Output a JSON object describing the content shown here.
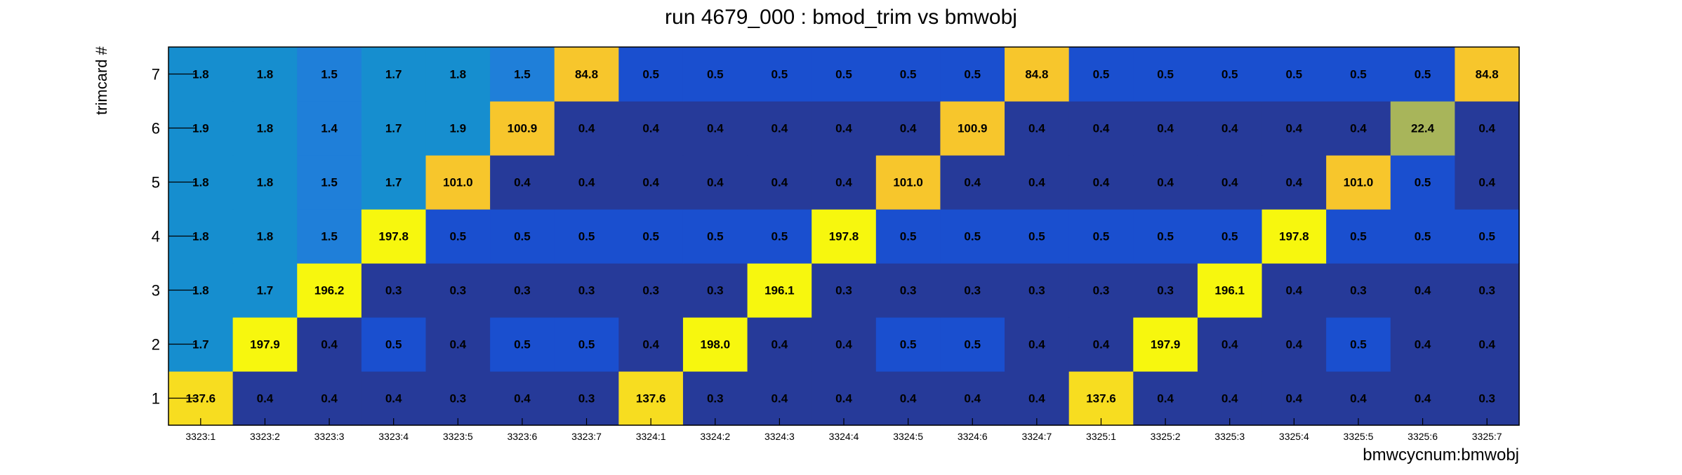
{
  "chart_data": {
    "type": "heatmap",
    "title": "run 4679_000 : bmod_trim vs bmwobj",
    "xlabel": "bmwcycnum:bmwobj",
    "ylabel": "trimcard #",
    "x_categories": [
      "3323:1",
      "3323:2",
      "3323:3",
      "3323:4",
      "3323:5",
      "3323:6",
      "3323:7",
      "3324:1",
      "3324:2",
      "3324:3",
      "3324:4",
      "3324:5",
      "3324:6",
      "3324:7",
      "3325:1",
      "3325:2",
      "3325:3",
      "3325:4",
      "3325:5",
      "3325:6",
      "3325:7"
    ],
    "y_categories": [
      "1",
      "2",
      "3",
      "4",
      "5",
      "6",
      "7"
    ],
    "values": [
      [
        "137.6",
        "0.4",
        "0.4",
        "0.4",
        "0.3",
        "0.4",
        "0.3",
        "137.6",
        "0.3",
        "0.4",
        "0.4",
        "0.4",
        "0.4",
        "0.4",
        "137.6",
        "0.4",
        "0.4",
        "0.4",
        "0.4",
        "0.4",
        "0.3"
      ],
      [
        "1.7",
        "197.9",
        "0.4",
        "0.5",
        "0.4",
        "0.5",
        "0.5",
        "0.4",
        "198.0",
        "0.4",
        "0.4",
        "0.5",
        "0.5",
        "0.4",
        "0.4",
        "197.9",
        "0.4",
        "0.4",
        "0.5",
        "0.4",
        "0.4"
      ],
      [
        "1.8",
        "1.7",
        "196.2",
        "0.3",
        "0.3",
        "0.3",
        "0.3",
        "0.3",
        "0.3",
        "196.1",
        "0.3",
        "0.3",
        "0.3",
        "0.3",
        "0.3",
        "0.3",
        "196.1",
        "0.4",
        "0.3",
        "0.4",
        "0.3"
      ],
      [
        "1.8",
        "1.8",
        "1.5",
        "197.8",
        "0.5",
        "0.5",
        "0.5",
        "0.5",
        "0.5",
        "0.5",
        "197.8",
        "0.5",
        "0.5",
        "0.5",
        "0.5",
        "0.5",
        "0.5",
        "197.8",
        "0.5",
        "0.5",
        "0.5"
      ],
      [
        "1.8",
        "1.8",
        "1.5",
        "1.7",
        "101.0",
        "0.4",
        "0.4",
        "0.4",
        "0.4",
        "0.4",
        "0.4",
        "101.0",
        "0.4",
        "0.4",
        "0.4",
        "0.4",
        "0.4",
        "0.4",
        "101.0",
        "0.5",
        "0.4"
      ],
      [
        "1.9",
        "1.8",
        "1.4",
        "1.7",
        "1.9",
        "100.9",
        "0.4",
        "0.4",
        "0.4",
        "0.4",
        "0.4",
        "0.4",
        "100.9",
        "0.4",
        "0.4",
        "0.4",
        "0.4",
        "0.4",
        "0.4",
        "22.4",
        "0.4"
      ],
      [
        "1.8",
        "1.8",
        "1.5",
        "1.7",
        "1.8",
        "1.5",
        "84.8",
        "0.5",
        "0.5",
        "0.5",
        "0.5",
        "0.5",
        "0.5",
        "84.8",
        "0.5",
        "0.5",
        "0.5",
        "0.5",
        "0.5",
        "0.5",
        "84.8"
      ]
    ],
    "colormap": {
      "0.3": "#263a99",
      "0.4": "#263a99",
      "0.5": "#1a4fcf",
      "1.4": "#1f7fd9",
      "1.5": "#1f7fd9",
      "1.7": "#168ecf",
      "1.8": "#168ecf",
      "1.9": "#168ecf",
      "22.4": "#a8b55a",
      "84.8": "#f7c62c",
      "100.9": "#f7c62c",
      "101.0": "#f7c62c",
      "137.6": "#f7dd20",
      "196.1": "#f7f70e",
      "196.2": "#f7f70e",
      "197.8": "#f7f70e",
      "197.9": "#f7f70e",
      "198.0": "#f7f70e"
    },
    "grid": false,
    "legend": "none"
  }
}
